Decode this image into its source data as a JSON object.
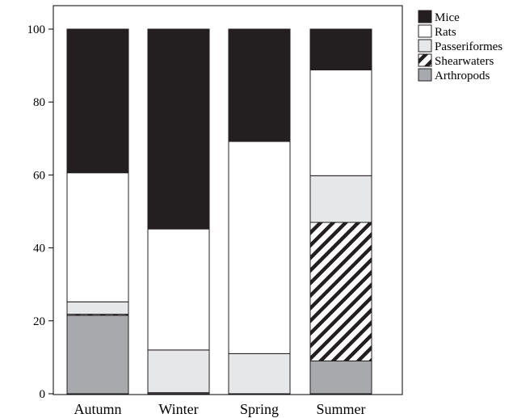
{
  "chart_data": {
    "type": "bar",
    "stacked": true,
    "categories": [
      "Autumn",
      "Winter",
      "Spring",
      "Summer"
    ],
    "series": [
      {
        "name": "Arthropods",
        "values": [
          21.5,
          0.3,
          0.0,
          9.0
        ],
        "fill": "#a7a9ac",
        "pattern": "solid"
      },
      {
        "name": "Shearwaters",
        "values": [
          0.3,
          0.0,
          0.0,
          38.0
        ],
        "fill": "#ffffff",
        "pattern": "diagonal-hatch"
      },
      {
        "name": "Passeriformes",
        "values": [
          3.4,
          11.7,
          11.0,
          12.8
        ],
        "fill": "#e6e7e8",
        "pattern": "solid"
      },
      {
        "name": "Rats",
        "values": [
          35.4,
          33.2,
          58.2,
          29.0
        ],
        "fill": "#ffffff",
        "pattern": "solid"
      },
      {
        "name": "Mice",
        "values": [
          39.4,
          54.8,
          30.8,
          11.2
        ],
        "fill": "#231f20",
        "pattern": "solid"
      }
    ],
    "legend_order": [
      "Mice",
      "Rats",
      "Passeriformes",
      "Shearwaters",
      "Arthropods"
    ],
    "legend_position": "top-right outside",
    "ylim": [
      0,
      100
    ],
    "yticks": [
      0,
      20,
      40,
      60,
      80,
      100
    ],
    "grid": false,
    "title": "",
    "xlabel": "",
    "ylabel": ""
  }
}
